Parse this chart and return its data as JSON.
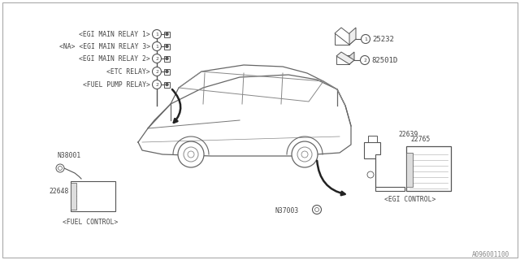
{
  "bg_color": "#ffffff",
  "diagram_code": "A096001100",
  "relay_labels": [
    "<EGI MAIN RELAY 1>",
    "<NA> <EGI MAIN RELAY 3>",
    "<EGI MAIN RELAY 2>",
    "<ETC RELAY>",
    "<FUEL PUMP RELAY>"
  ],
  "relay_numbers": [
    "1",
    "1",
    "2",
    "2",
    "2"
  ],
  "line_color": "#555555",
  "text_color": "#444444",
  "font_size_main": 6.5,
  "font_size_label": 5.8,
  "font_size_code": 5.5,
  "border_color": "#aaaaaa"
}
